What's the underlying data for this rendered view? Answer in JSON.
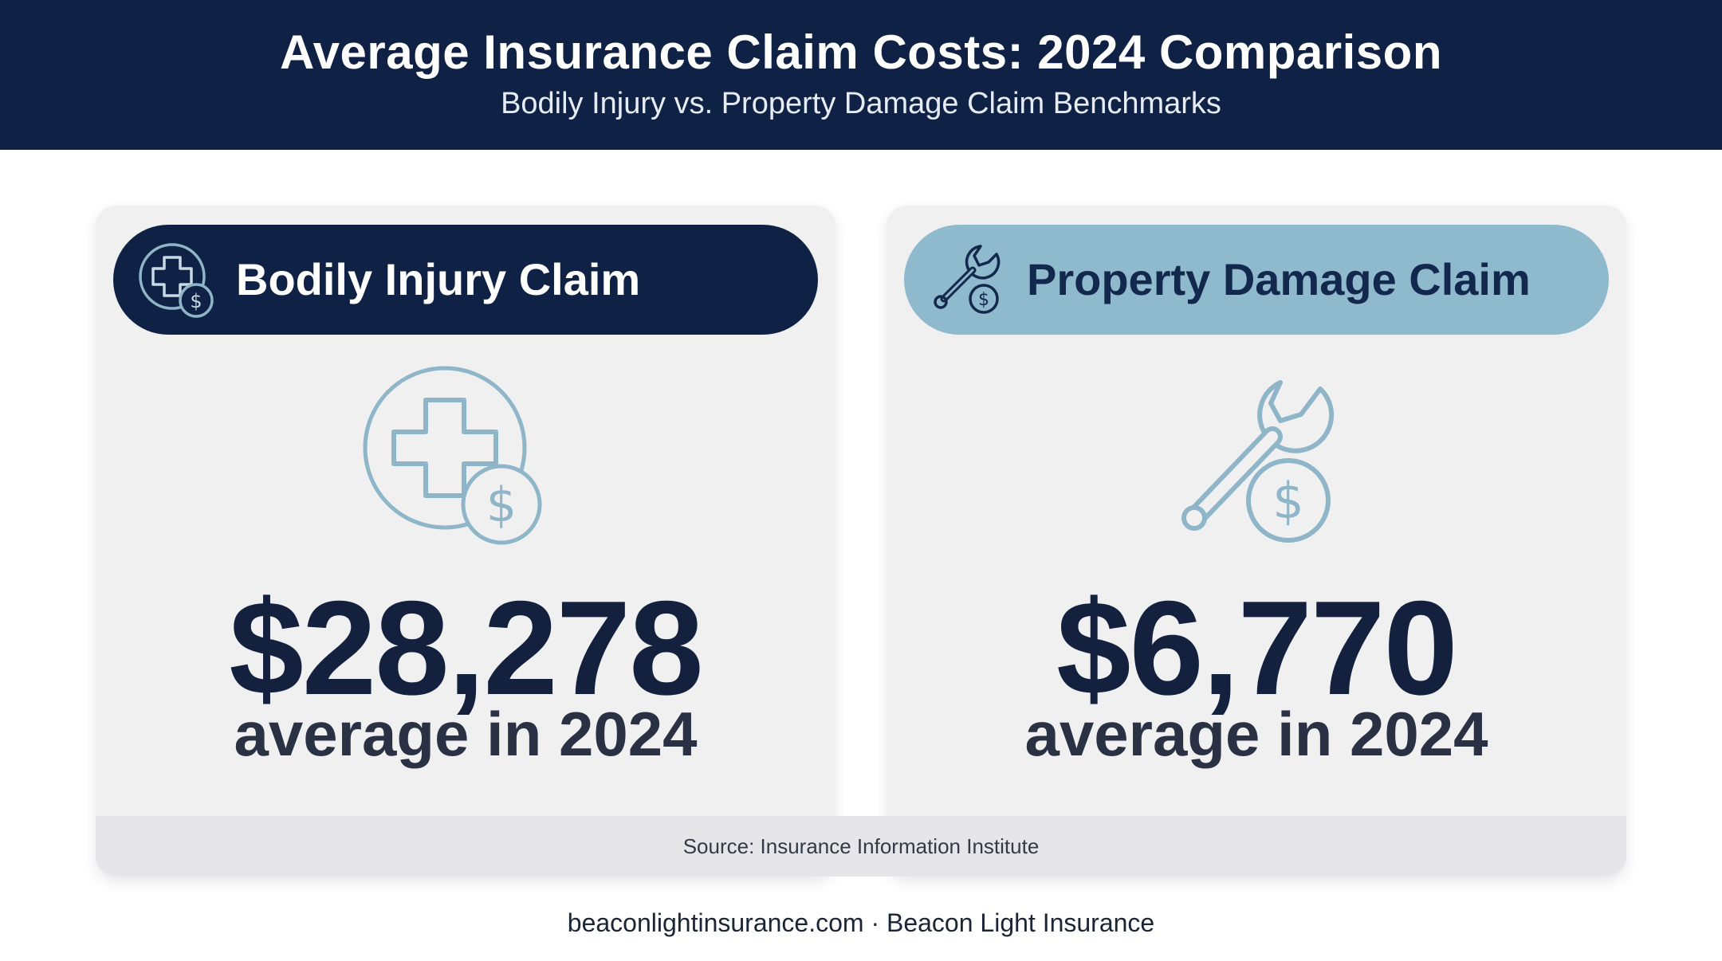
{
  "header": {
    "title": "Average Insurance Claim Costs: 2024 Comparison",
    "subtitle": "Bodily Injury vs. Property Damage Claim Benchmarks"
  },
  "cards": [
    {
      "label": "Bodily Injury Claim",
      "amount": "$28,278",
      "caption": "average in 2024",
      "icon": "medical-cross-dollar-icon",
      "pill_color": "#0f2144"
    },
    {
      "label": "Property Damage Claim",
      "amount": "$6,770",
      "caption": "average in 2024",
      "icon": "wrench-dollar-icon",
      "pill_color": "#8fb9cc"
    }
  ],
  "source": "Source: Insurance Information Institute",
  "footer": "beaconlightinsurance.com · Beacon Light Insurance",
  "colors": {
    "navy": "#0f2144",
    "light_blue": "#8fb9cc",
    "icon_stroke": "#8fb5c8",
    "card_bg": "#f0f0f1"
  }
}
